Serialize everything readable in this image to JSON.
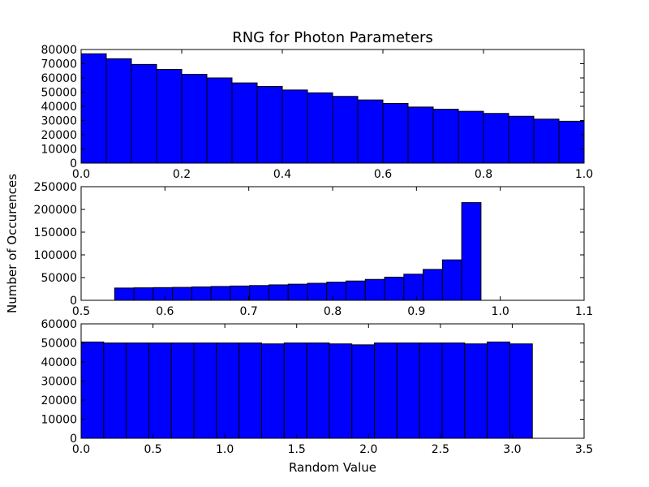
{
  "chart_data": {
    "title": "RNG for Photon Parameters",
    "xlabel": "Random Value",
    "ylabel": "Number of Occurences",
    "bar_color": "#0000ff",
    "edge_color": "#000000",
    "panels": [
      {
        "type": "bar",
        "bins": {
          "start": 0.0,
          "width": 0.05
        },
        "values": [
          77000,
          73500,
          69500,
          66000,
          62500,
          60000,
          56500,
          54000,
          51500,
          49500,
          47000,
          44500,
          42000,
          39500,
          38000,
          36500,
          35000,
          33000,
          31000,
          29500
        ],
        "xlim": [
          0.0,
          1.0
        ],
        "ylim": [
          0,
          80000
        ],
        "xticks": [
          "0.0",
          "0.2",
          "0.4",
          "0.6",
          "0.8",
          "1.0"
        ],
        "yticks": [
          "0",
          "10000",
          "20000",
          "30000",
          "40000",
          "50000",
          "60000",
          "70000",
          "80000"
        ]
      },
      {
        "type": "bar",
        "bins": {
          "start": 0.54,
          "width": 0.023
        },
        "values": [
          27000,
          27500,
          28000,
          28500,
          29500,
          30500,
          31500,
          32500,
          34000,
          35500,
          37500,
          40000,
          42500,
          46000,
          51000,
          57500,
          68000,
          89000,
          215000
        ],
        "xlim": [
          0.5,
          1.1
        ],
        "ylim": [
          0,
          250000
        ],
        "xticks": [
          "0.5",
          "0.6",
          "0.7",
          "0.8",
          "0.9",
          "1.0",
          "1.1"
        ],
        "yticks": [
          "0",
          "50000",
          "100000",
          "150000",
          "200000",
          "250000"
        ]
      },
      {
        "type": "bar",
        "bins": {
          "start": 0.0,
          "width": 0.157
        },
        "values": [
          50500,
          50000,
          50000,
          50000,
          50000,
          50000,
          50000,
          50000,
          49500,
          50000,
          50000,
          49500,
          49000,
          50000,
          50000,
          50000,
          50000,
          49500,
          50500,
          49500
        ],
        "xlim": [
          0.0,
          3.5
        ],
        "ylim": [
          0,
          60000
        ],
        "xticks": [
          "0.0",
          "0.5",
          "1.0",
          "1.5",
          "2.0",
          "2.5",
          "3.0",
          "3.5"
        ],
        "yticks": [
          "0",
          "10000",
          "20000",
          "30000",
          "40000",
          "50000",
          "60000"
        ]
      }
    ]
  }
}
